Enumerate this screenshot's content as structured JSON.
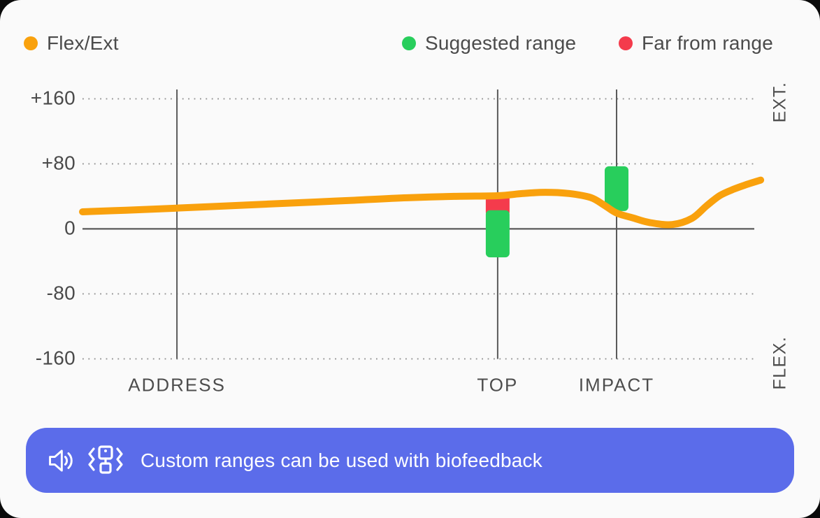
{
  "legend": {
    "items": [
      {
        "label": "Flex/Ext",
        "color": "#f9a10d"
      },
      {
        "label": "Suggested range",
        "color": "#28ce5c"
      },
      {
        "label": "Far from range",
        "color": "#f43b4c"
      }
    ]
  },
  "chart_data": {
    "type": "line",
    "title": "",
    "xlabel": "",
    "ylabel": "",
    "grid": "dotted horizontal gridlines, solid zero line, vertical event lines",
    "legend_position": "top",
    "y_axis": {
      "range": [
        -160,
        160
      ],
      "ticks": [
        {
          "label": "+160",
          "value": 160
        },
        {
          "label": "+80",
          "value": 80
        },
        {
          "label": "0",
          "value": 0
        },
        {
          "label": "-80",
          "value": -80
        },
        {
          "label": "-160",
          "value": -160
        }
      ],
      "top_right_label": "EXT.",
      "bottom_right_label": "FLEX."
    },
    "events": [
      {
        "label": "ADDRESS",
        "x": 0.139
      },
      {
        "label": "TOP",
        "x": 0.611,
        "suggested_range": [
          -35,
          23
        ],
        "far_range": [
          23,
          42
        ]
      },
      {
        "label": "IMPACT",
        "x": 0.786,
        "suggested_range": [
          22,
          77
        ]
      }
    ],
    "series": [
      {
        "name": "Flex/Ext",
        "points": [
          [
            0.0,
            21.0
          ],
          [
            0.064,
            23.0
          ],
          [
            0.139,
            25.5
          ],
          [
            0.208,
            28.0
          ],
          [
            0.273,
            30.5
          ],
          [
            0.342,
            33.0
          ],
          [
            0.414,
            35.8
          ],
          [
            0.478,
            38.3
          ],
          [
            0.547,
            40.0
          ],
          [
            0.611,
            40.8
          ],
          [
            0.648,
            43.5
          ],
          [
            0.681,
            45.0
          ],
          [
            0.716,
            43.5
          ],
          [
            0.748,
            38.5
          ],
          [
            0.768,
            29.0
          ],
          [
            0.786,
            19.5
          ],
          [
            0.81,
            13.5
          ],
          [
            0.835,
            7.7
          ],
          [
            0.868,
            5.3
          ],
          [
            0.897,
            13.0
          ],
          [
            0.918,
            28.0
          ],
          [
            0.938,
            41.0
          ],
          [
            0.959,
            49.0
          ],
          [
            0.979,
            55.0
          ],
          [
            0.998,
            60.0
          ]
        ]
      }
    ]
  },
  "colors": {
    "line": "#f9a10d",
    "suggested": "#28ce5c",
    "far": "#f43b4c",
    "axis_solid": "#5a5a5a",
    "grid_dotted": "#969696",
    "card_background": "#fafafa",
    "banner_background": "#5b6cea"
  },
  "banner": {
    "text": "Custom ranges can be used with biofeedback",
    "icons": [
      "speaker-icon",
      "vibration-icon"
    ],
    "background": "#5b6cea",
    "text_color": "#ffffff"
  }
}
